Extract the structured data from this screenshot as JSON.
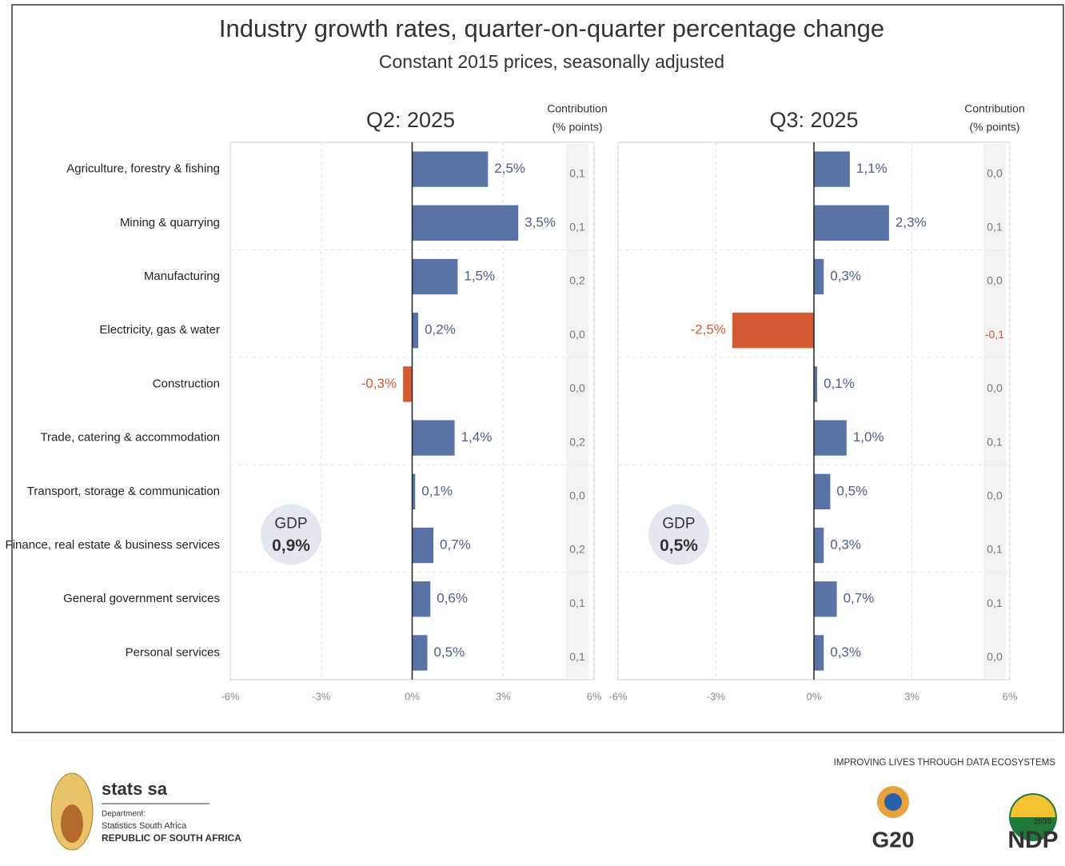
{
  "header": {
    "title": "Industry growth rates, quarter-on-quarter percentage change",
    "subtitle": "Constant 2015 prices, seasonally adjusted"
  },
  "chart_data": [
    {
      "type": "bar",
      "orientation": "horizontal",
      "title": "Q2: 2025",
      "contribution_header": [
        "Contribution",
        "(% points)"
      ],
      "categories": [
        "Agriculture, forestry & fishing",
        "Mining & quarrying",
        "Manufacturing",
        "Electricity, gas & water",
        "Construction",
        "Trade, catering & accommodation",
        "Transport, storage & communication",
        "Finance, real estate & business services",
        "General government services",
        "Personal services"
      ],
      "values": [
        2.5,
        3.5,
        1.5,
        0.2,
        -0.3,
        1.4,
        0.1,
        0.7,
        0.6,
        0.5
      ],
      "value_labels": [
        "2,5%",
        "3,5%",
        "1,5%",
        "0,2%",
        "-0,3%",
        "1,4%",
        "0,1%",
        "0,7%",
        "0,6%",
        "0,5%"
      ],
      "contributions": [
        0.1,
        0.1,
        0.2,
        0.0,
        0.0,
        0.2,
        0.0,
        0.2,
        0.1,
        0.1
      ],
      "contribution_labels": [
        "0,1",
        "0,1",
        "0,2",
        "0,0",
        "0,0",
        "0,2",
        "0,0",
        "0,2",
        "0,1",
        "0,1"
      ],
      "gdp": {
        "label": "GDP",
        "value": 0.9,
        "value_label": "0,9%"
      },
      "color": "#5a73a6",
      "negative_color": "#d45a33",
      "xlim": [
        -6,
        6
      ],
      "xticks": [
        {
          "value": -6,
          "label": "-6%"
        },
        {
          "value": -3,
          "label": "-3%"
        },
        {
          "value": 0,
          "label": "0%"
        },
        {
          "value": 3,
          "label": "3%"
        },
        {
          "value": 6,
          "label": "6%"
        }
      ],
      "grid": true
    },
    {
      "type": "bar",
      "orientation": "horizontal",
      "title": "Q3: 2025",
      "contribution_header": [
        "Contribution",
        "(% points)"
      ],
      "values": [
        1.1,
        2.3,
        0.3,
        -2.5,
        0.1,
        1.0,
        0.5,
        0.3,
        0.7,
        0.3
      ],
      "value_labels": [
        "1,1%",
        "2,3%",
        "0,3%",
        "-2,5%",
        "0,1%",
        "1,0%",
        "0,5%",
        "0,3%",
        "0,7%",
        "0,3%"
      ],
      "contributions": [
        0.0,
        0.1,
        0.0,
        -0.1,
        0.0,
        0.1,
        0.0,
        0.1,
        0.1,
        0.0
      ],
      "contribution_labels": [
        "0,0",
        "0,1",
        "0,0",
        "-0,1",
        "0,0",
        "0,1",
        "0,0",
        "0,1",
        "0,1",
        "0,0"
      ],
      "gdp": {
        "label": "GDP",
        "value": 0.5,
        "value_label": "0,5%"
      },
      "color": "#5a73a6",
      "negative_color": "#d45a33",
      "xlim": [
        -6,
        6
      ],
      "xticks": [
        {
          "value": -6,
          "label": "-6%"
        },
        {
          "value": -3,
          "label": "-3%"
        },
        {
          "value": 0,
          "label": "0%"
        },
        {
          "value": 3,
          "label": "3%"
        },
        {
          "value": 6,
          "label": "6%"
        }
      ],
      "grid": true
    }
  ],
  "footer": {
    "brand": "stats sa",
    "department": [
      "Department:",
      "Statistics South Africa",
      "REPUBLIC OF SOUTH AFRICA"
    ],
    "slogan": "IMPROVING LIVES THROUGH DATA ECOSYSTEMS",
    "g20": "G20",
    "ndp": "NDP",
    "ndp_year": "2030"
  }
}
